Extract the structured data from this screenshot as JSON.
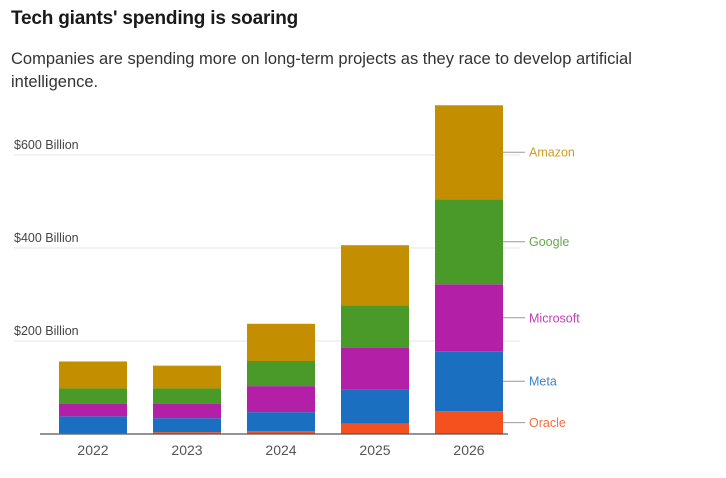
{
  "chart_data": {
    "type": "bar",
    "stacked": true,
    "title": "Tech giants' spending is soaring",
    "subtitle": "Companies are spending more on long-term projects as they race to develop artificial intelligence.",
    "xlabel": "",
    "ylabel": "",
    "categories": [
      "2022",
      "2023",
      "2024",
      "2025",
      "2026"
    ],
    "ylim": [
      0,
      700
    ],
    "yticks": [
      {
        "value": 200,
        "label": "$200 Billion"
      },
      {
        "value": 400,
        "label": "$400 Billion"
      },
      {
        "value": 600,
        "label": "$600 Billion"
      }
    ],
    "grid": true,
    "legend": "right, direct labels",
    "units": "Billion USD",
    "series": [
      {
        "name": "Oracle",
        "color": "#F5511E",
        "values": [
          2,
          4,
          6,
          22,
          49
        ]
      },
      {
        "name": "Meta",
        "color": "#1A6FC0",
        "values": [
          36,
          30,
          41,
          73,
          129
        ]
      },
      {
        "name": "Microsoft",
        "color": "#B41FA8",
        "values": [
          28,
          32,
          56,
          90,
          144
        ]
      },
      {
        "name": "Google",
        "color": "#4A9A2A",
        "values": [
          32,
          32,
          54,
          92,
          183
        ]
      },
      {
        "name": "Amazon",
        "color": "#C38E00",
        "values": [
          58,
          49,
          80,
          129,
          202
        ]
      }
    ]
  }
}
